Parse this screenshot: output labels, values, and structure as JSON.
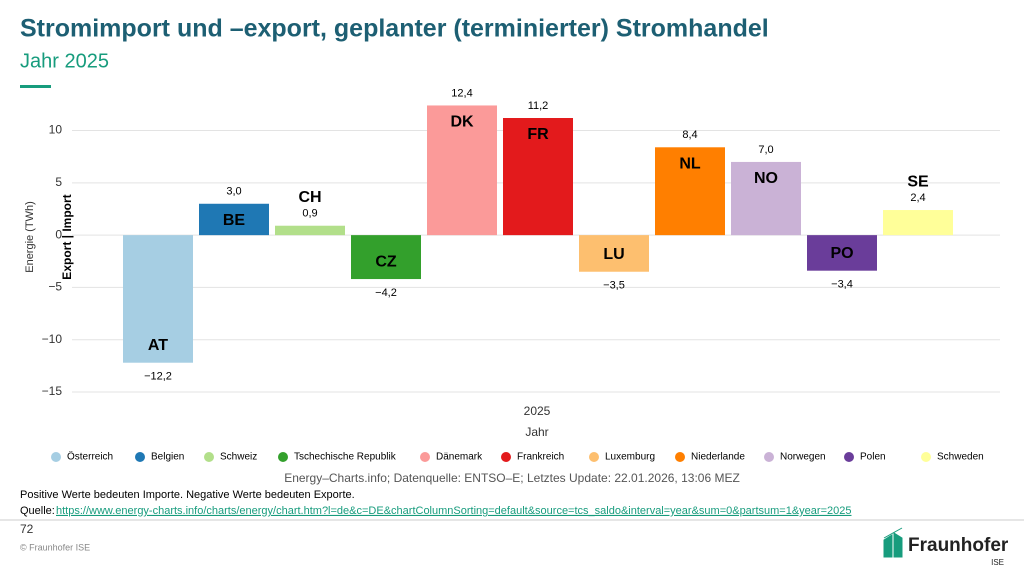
{
  "header": {
    "title": "Stromimport und –export, geplanter (terminierter) Stromhandel",
    "subtitle": "Jahr 2025"
  },
  "chart_data": {
    "type": "bar",
    "y_label": "Energie (TWh)",
    "y_label_inner": "Export | Import",
    "x_tick_label": "2025",
    "x_label": "Jahr",
    "categories": [
      "Österreich",
      "Belgien",
      "Schweiz",
      "Tschechische Republik",
      "Dänemark",
      "Frankreich",
      "Luxemburg",
      "Niederlande",
      "Norwegen",
      "Polen",
      "Schweden"
    ],
    "bar_labels": [
      "AT",
      "BE",
      "CH",
      "CZ",
      "DK",
      "FR",
      "LU",
      "NL",
      "NO",
      "PO",
      "SE"
    ],
    "values": [
      -12.2,
      3.0,
      0.9,
      -4.2,
      12.4,
      11.2,
      -3.5,
      8.4,
      7.0,
      -3.4,
      2.4
    ],
    "value_labels": [
      "−12,2",
      "3,0",
      "0,9",
      "−4,2",
      "12,4",
      "11,2",
      "−3,5",
      "8,4",
      "7,0",
      "−3,4",
      "2,4"
    ],
    "colors": [
      "#a6cee3",
      "#1f78b4",
      "#b2df8a",
      "#33a02c",
      "#fb9a99",
      "#e31a1c",
      "#fdbf6f",
      "#ff7f00",
      "#cab2d6",
      "#6a3d9a",
      "#ffff99"
    ],
    "ylim": [
      -15,
      13.4
    ],
    "yticks": [
      {
        "value": -15,
        "label": "−15"
      },
      {
        "value": -10,
        "label": "−10"
      },
      {
        "value": -5,
        "label": "−5"
      },
      0,
      5,
      10
    ],
    "grid": true,
    "credit": "Energy–Charts.info; Datenquelle: ENTSO–E; Letztes Update: 22.01.2026, 13:06 MEZ"
  },
  "footer": {
    "note": "Positive Werte bedeuten Importe. Negative Werte bedeuten Exporte.",
    "source_label": "Quelle:",
    "source_url": "https://www.energy-charts.info/charts/energy/chart.htm?l=de&c=DE&chartColumnSorting=default&source=tcs_saldo&interval=year&sum=0&partsum=1&year=2025",
    "page": "72",
    "copyright": "© Fraunhofer ISE",
    "logo": "Fraunhofer",
    "logo_sub": "ISE"
  }
}
